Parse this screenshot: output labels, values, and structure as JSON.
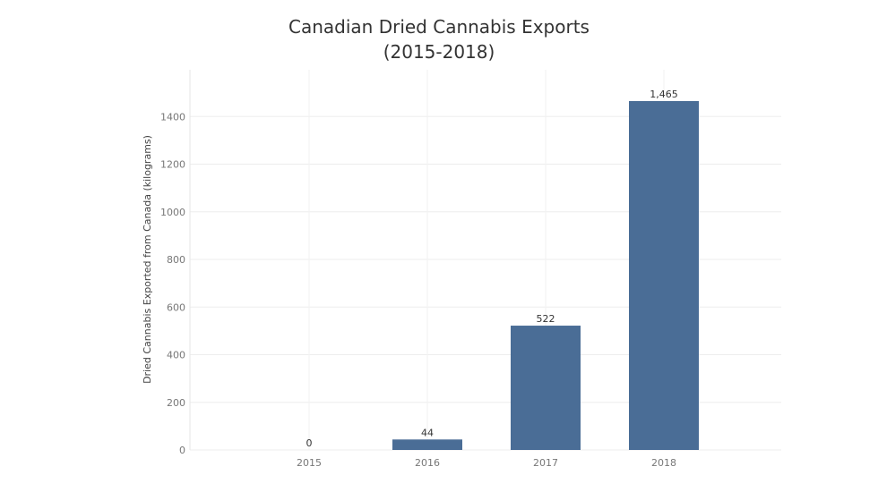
{
  "chart_data": {
    "type": "bar",
    "title": "Canadian Dried Cannabis Exports",
    "subtitle": "(2015-2018)",
    "xlabel": "",
    "ylabel": "Dried Cannabis Exported from Canada (kilograms)",
    "categories": [
      "2015",
      "2016",
      "2017",
      "2018"
    ],
    "values": [
      0,
      44,
      522,
      1465
    ],
    "data_labels": [
      "0",
      "44",
      "522",
      "1,465"
    ],
    "yticks": [
      0,
      200,
      400,
      600,
      800,
      1000,
      1200,
      1400
    ],
    "ylim": [
      0,
      1465
    ],
    "grid": true,
    "legend": "none",
    "bar_color": "#4a6d96"
  }
}
